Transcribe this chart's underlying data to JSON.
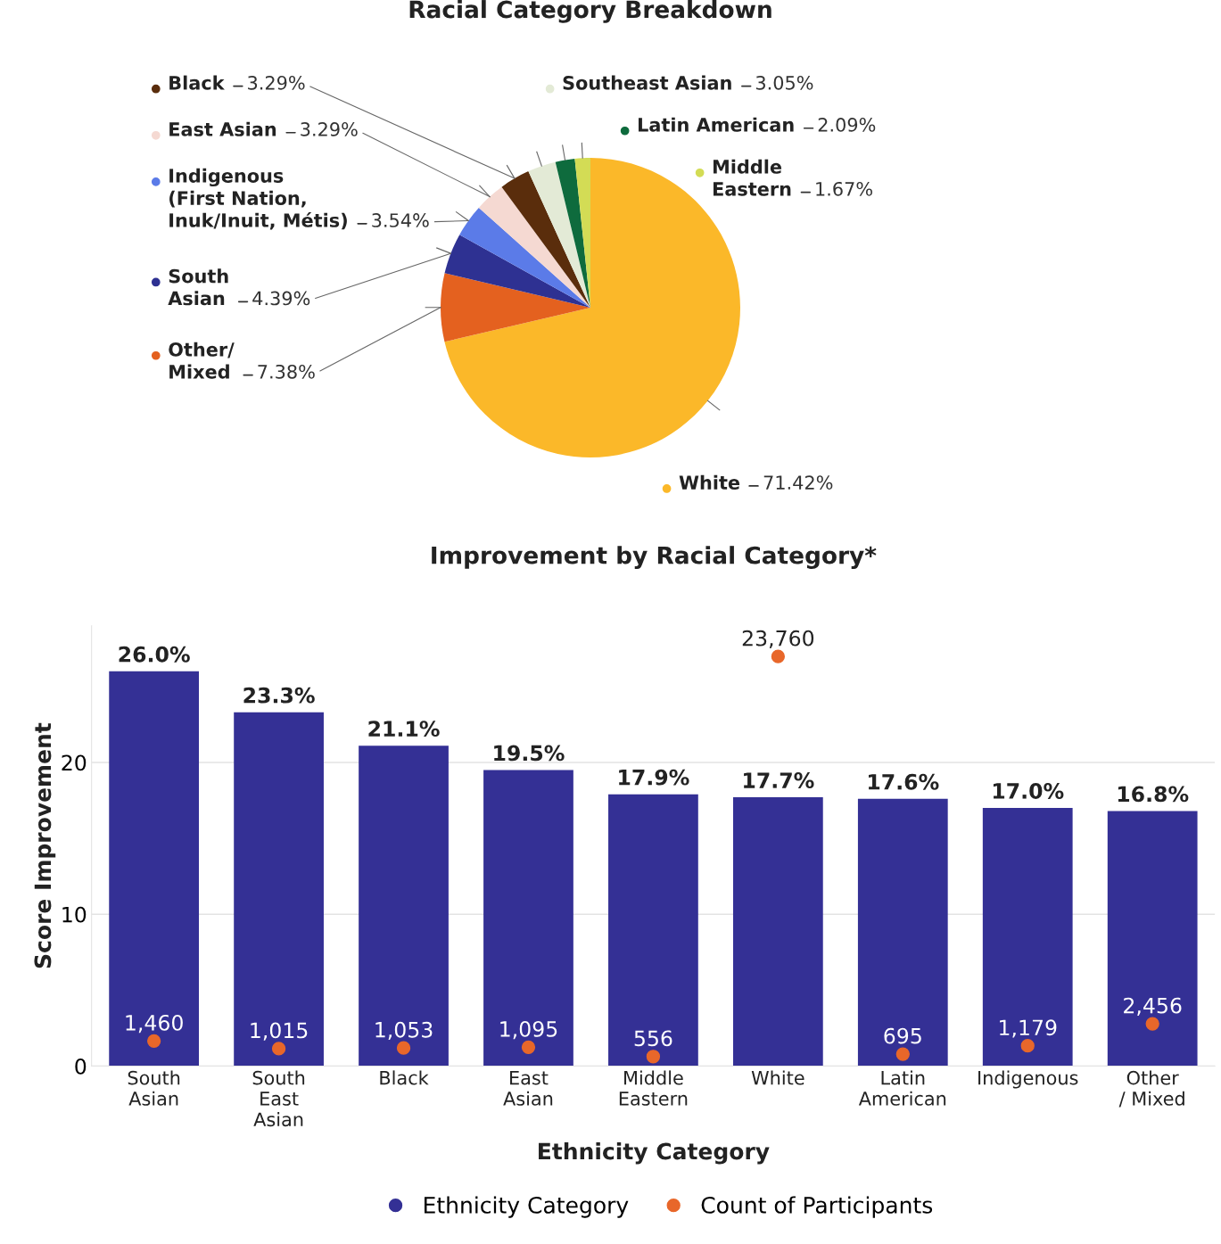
{
  "chart_data": [
    {
      "type": "pie",
      "title": "Racial Category Breakdown",
      "categories": [
        "White",
        "Other/\nMixed",
        "South\nAsian",
        "Indigenous\n(First Nation,\nInuk/Inuit, Métis)",
        "East Asian",
        "Black",
        "Southeast Asian",
        "Latin American",
        "Middle\nEastern"
      ],
      "values": [
        71.42,
        7.38,
        4.39,
        3.54,
        3.29,
        3.29,
        3.05,
        2.09,
        1.67
      ],
      "value_labels": [
        "71.42%",
        "7.38%",
        "4.39%",
        "3.54%",
        "3.29%",
        "3.29%",
        "3.05%",
        "2.09%",
        "1.67%"
      ],
      "colors": [
        "#fbb829",
        "#e4611f",
        "#2e3192",
        "#5b7be8",
        "#f5d9d2",
        "#5a2d0c",
        "#e3ead6",
        "#0e6b3d",
        "#d3dc55"
      ],
      "legend": "left"
    },
    {
      "type": "bar",
      "title": "Improvement by Racial Category*",
      "xlabel": "Ethnicity Category",
      "ylabel": "Score Improvement",
      "categories": [
        "South\nAsian",
        "South\nEast\nAsian",
        "Black",
        "East\nAsian",
        "Middle\nEastern",
        "White",
        "Latin\nAmerican",
        "Indigenous",
        "Other\n/ Mixed"
      ],
      "ylim": [
        0,
        29
      ],
      "yticks": [
        0,
        10,
        20
      ],
      "grid": "y",
      "legend": "bottom",
      "series": [
        {
          "name": "Ethnicity Category",
          "type": "bar",
          "color": "#343095",
          "values": [
            26.0,
            23.3,
            21.1,
            19.5,
            17.9,
            17.7,
            17.6,
            17.0,
            16.8
          ],
          "value_labels": [
            "26.0%",
            "23.3%",
            "21.1%",
            "19.5%",
            "17.9%",
            "17.7%",
            "17.6%",
            "17.0%",
            "16.8%"
          ]
        },
        {
          "name": "Count of Participants",
          "type": "scatter",
          "axis": "y2",
          "marker": "circle",
          "color": "#e8672a",
          "values": [
            1460,
            1015,
            1053,
            1095,
            556,
            23760,
            695,
            1179,
            2456
          ],
          "value_labels": [
            "1,460",
            "1,015",
            "1,053",
            "1,095",
            "556",
            "23,760",
            "695",
            "1,179",
            "2,456"
          ]
        }
      ]
    }
  ]
}
